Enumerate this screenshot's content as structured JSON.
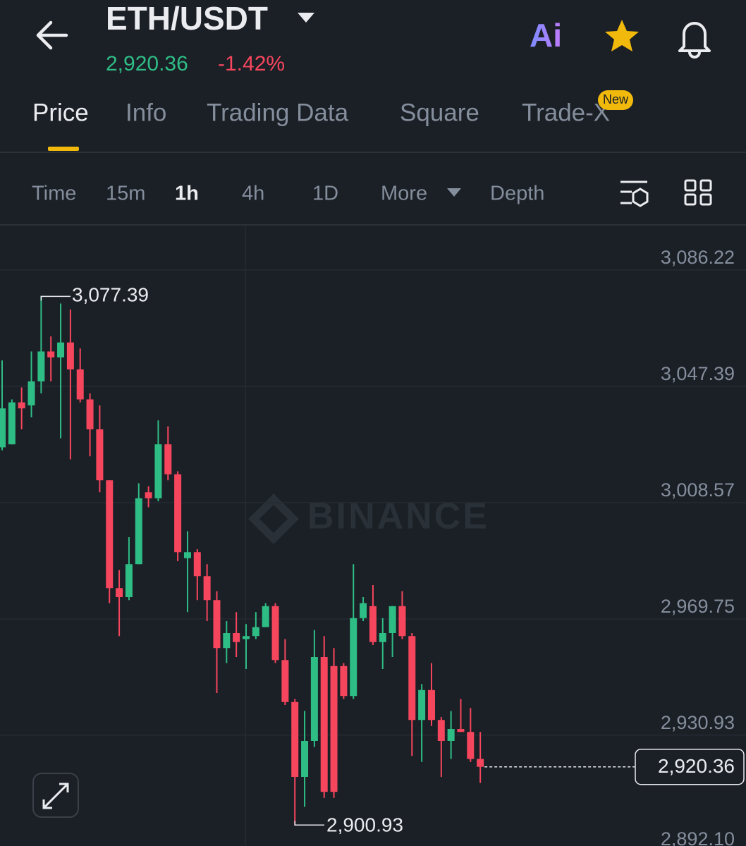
{
  "header": {
    "pair": "ETH/USDT",
    "price": "2,920.36",
    "change": "-1.42%",
    "ai_label": "Ai"
  },
  "tabs": [
    "Price",
    "Info",
    "Trading Data",
    "Square",
    "Trade-X"
  ],
  "badge": "New",
  "intervals": [
    "Time",
    "15m",
    "1h",
    "4h",
    "1D",
    "More",
    "Depth"
  ],
  "chart_data": {
    "type": "candlestick",
    "watermark": "BINANCE",
    "up_color": "#2ebd85",
    "down_color": "#f6465d",
    "ylim": [
      2890,
      3101
    ],
    "yticks": [
      {
        "value": 3086.22,
        "label": "3,086.22"
      },
      {
        "value": 3047.39,
        "label": "3,047.39"
      },
      {
        "value": 3008.57,
        "label": "3,008.57"
      },
      {
        "value": 2969.75,
        "label": "2,969.75"
      },
      {
        "value": 2930.93,
        "label": "2,930.93"
      },
      {
        "value": 2892.1,
        "label": "2,892.10"
      }
    ],
    "grid": true,
    "open": [
      3027,
      3028,
      3042,
      3041,
      3049,
      3059,
      3057,
      3062,
      3053,
      3043,
      3033,
      3016,
      2980,
      2977,
      2988,
      3012,
      3010,
      3028,
      3018,
      2990,
      2992,
      2984,
      2976,
      2960,
      2965,
      2963,
      2964,
      2967,
      2974,
      2956,
      2942,
      2917,
      2929,
      2957,
      2954,
      2954,
      2944,
      2970,
      2974,
      2962,
      2965,
      2974,
      2964,
      2936,
      2946,
      2936,
      2929,
      2933,
      2932,
      2923
    ],
    "high": [
      3056,
      3043,
      3047,
      3059,
      3077.39,
      3064,
      3075,
      3073,
      3060,
      3045,
      3041,
      3016,
      2986,
      2997,
      3015,
      3014,
      3036,
      3034,
      3019,
      2999,
      2993,
      2988,
      2979,
      2969,
      2972,
      2968,
      2972,
      2975,
      2975,
      2963,
      2943,
      2939,
      2966,
      2964,
      2960,
      2955,
      2988,
      2977,
      2981,
      2970,
      2974,
      2979,
      2965,
      2948,
      2955,
      2937,
      2939,
      2943,
      2940,
      2932
    ],
    "low": [
      3026,
      3028,
      3033,
      3037,
      3045,
      3049,
      3030,
      3023,
      3042,
      3024,
      3012,
      2975,
      2964,
      2976,
      2988,
      3007,
      3009,
      3016,
      2989,
      2972,
      2976,
      2969,
      2945,
      2955,
      2957,
      2953,
      2963,
      2967,
      2955,
      2941,
      2900.93,
      2907,
      2927,
      2910,
      2910,
      2943,
      2943,
      2969,
      2961,
      2953,
      2957,
      2963,
      2924,
      2922,
      2934,
      2917,
      2923,
      2932,
      2922,
      2915
    ],
    "close": [
      3040,
      3042,
      3040,
      3049,
      3059,
      3057,
      3062,
      3053,
      3043,
      3033,
      3016,
      2980,
      2977,
      2988,
      3010,
      3010,
      3028,
      3018,
      2992,
      2992,
      2984,
      2976,
      2960,
      2965,
      2962,
      2964,
      2967,
      2974,
      2956,
      2942,
      2917,
      2929,
      2957,
      2912,
      2912,
      2944,
      2970,
      2975,
      2962,
      2965,
      2974,
      2964,
      2936,
      2946,
      2936,
      2929,
      2933,
      2932,
      2923,
      2920.36
    ],
    "high_label": {
      "value": 3077.39,
      "label": "3,077.39"
    },
    "low_label": {
      "value": 2900.93,
      "label": "2,900.93"
    },
    "last_price": {
      "value": 2920.36,
      "label": "2,920.36"
    }
  }
}
